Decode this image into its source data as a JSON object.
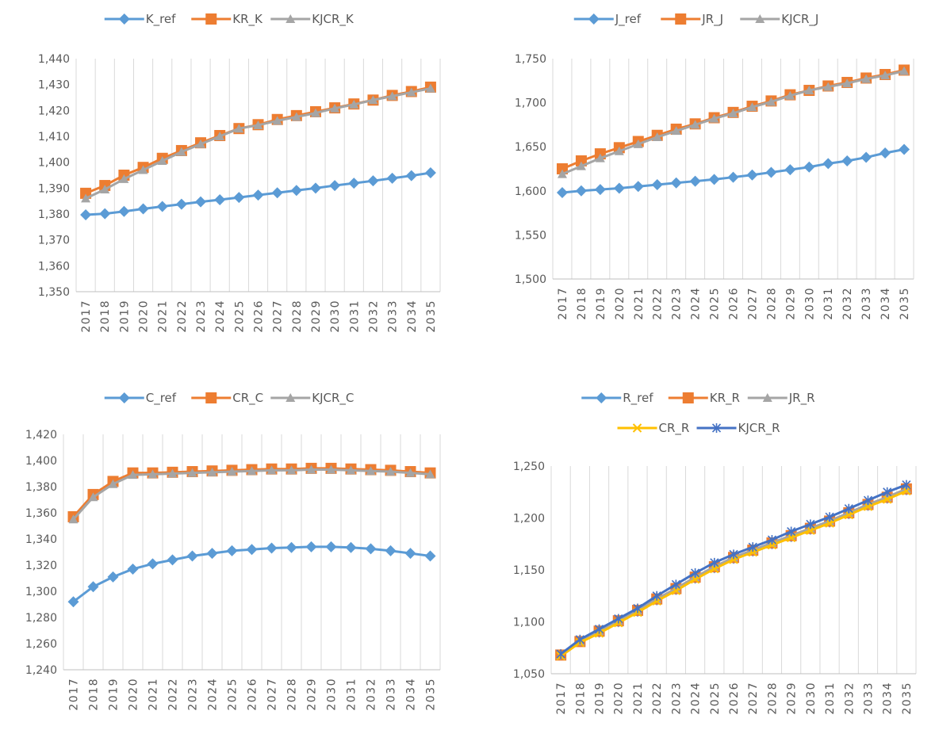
{
  "chart_data": [
    {
      "type": "line",
      "title": "",
      "xlabel": "",
      "ylabel": "",
      "ylim": [
        1350,
        1440
      ],
      "ytick_step": 10,
      "grid": "vertical",
      "legend_position": "top",
      "categories": [
        "2017",
        "2018",
        "2019",
        "2020",
        "2021",
        "2022",
        "2023",
        "2024",
        "2025",
        "2026",
        "2027",
        "2028",
        "2029",
        "2030",
        "2031",
        "2032",
        "2033",
        "2034",
        "2035"
      ],
      "series": [
        {
          "name": "K_ref",
          "color": "#5B9BD5",
          "marker": "diamond",
          "values": [
            1379.7,
            1380.1,
            1381.0,
            1382.0,
            1382.9,
            1383.8,
            1384.7,
            1385.5,
            1386.4,
            1387.3,
            1388.2,
            1389.1,
            1390.0,
            1391.0,
            1391.9,
            1392.8,
            1393.8,
            1394.8,
            1395.9
          ]
        },
        {
          "name": "KR_K",
          "color": "#ED7D31",
          "marker": "square",
          "values": [
            1388.0,
            1391.0,
            1395.0,
            1398.0,
            1401.5,
            1404.5,
            1407.5,
            1410.3,
            1413.0,
            1414.5,
            1416.5,
            1418.0,
            1419.5,
            1421.0,
            1422.5,
            1424.0,
            1425.8,
            1427.3,
            1429.0
          ]
        },
        {
          "name": "KJCR_K",
          "color": "#A5A5A5",
          "marker": "triangle",
          "values": [
            1386.0,
            1389.5,
            1393.5,
            1397.0,
            1400.5,
            1404.0,
            1407.0,
            1410.0,
            1413.0,
            1414.3,
            1416.0,
            1417.5,
            1419.0,
            1420.8,
            1422.3,
            1424.0,
            1425.5,
            1427.0,
            1428.5
          ]
        }
      ]
    },
    {
      "type": "line",
      "title": "",
      "xlabel": "",
      "ylabel": "",
      "ylim": [
        1500,
        1750
      ],
      "ytick_step": 50,
      "grid": "vertical",
      "legend_position": "top",
      "categories": [
        "2017",
        "2018",
        "2019",
        "2020",
        "2021",
        "2022",
        "2023",
        "2024",
        "2025",
        "2026",
        "2027",
        "2028",
        "2029",
        "2030",
        "2031",
        "2032",
        "2033",
        "2034",
        "2035"
      ],
      "series": [
        {
          "name": "J_ref",
          "color": "#5B9BD5",
          "marker": "diamond",
          "values": [
            1598,
            1600,
            1601.5,
            1603,
            1605,
            1607,
            1609,
            1611,
            1613,
            1615.5,
            1618,
            1621,
            1624,
            1627,
            1631,
            1634,
            1638,
            1643,
            1647
          ]
        },
        {
          "name": "JR_J",
          "color": "#ED7D31",
          "marker": "square",
          "values": [
            1625,
            1634,
            1642,
            1649,
            1656,
            1663,
            1670,
            1676,
            1683,
            1689,
            1696,
            1702,
            1709,
            1714,
            1719,
            1723,
            1728,
            1732,
            1737
          ]
        },
        {
          "name": "KJCR_J",
          "color": "#A5A5A5",
          "marker": "triangle",
          "values": [
            1619,
            1628,
            1637,
            1645,
            1653,
            1661,
            1668,
            1675,
            1682,
            1688,
            1695,
            1701,
            1708,
            1714,
            1718,
            1722,
            1727,
            1731,
            1736
          ]
        }
      ]
    },
    {
      "type": "line",
      "title": "",
      "xlabel": "",
      "ylabel": "",
      "ylim": [
        1240,
        1420
      ],
      "ytick_step": 20,
      "grid": "vertical",
      "legend_position": "top",
      "categories": [
        "2017",
        "2018",
        "2019",
        "2020",
        "2021",
        "2022",
        "2023",
        "2024",
        "2025",
        "2026",
        "2027",
        "2028",
        "2029",
        "2030",
        "2031",
        "2032",
        "2033",
        "2034",
        "2035"
      ],
      "series": [
        {
          "name": "C_ref",
          "color": "#5B9BD5",
          "marker": "diamond",
          "values": [
            1292,
            1303.5,
            1311,
            1317,
            1321,
            1324,
            1327,
            1329,
            1331,
            1332,
            1333,
            1333.5,
            1334,
            1334,
            1333.5,
            1332.5,
            1331,
            1329,
            1327
          ]
        },
        {
          "name": "CR_C",
          "color": "#ED7D31",
          "marker": "square",
          "values": [
            1357,
            1374,
            1384,
            1390.5,
            1390.5,
            1391,
            1391.5,
            1392,
            1392.5,
            1393,
            1393.5,
            1393.5,
            1394,
            1394,
            1393.5,
            1393,
            1392.5,
            1391.5,
            1390.5
          ]
        },
        {
          "name": "KJCR_C",
          "color": "#A5A5A5",
          "marker": "triangle",
          "values": [
            1355,
            1372,
            1382,
            1389,
            1389.5,
            1390,
            1390.5,
            1391,
            1391.5,
            1392,
            1392.5,
            1392.5,
            1393,
            1393,
            1392.5,
            1392,
            1391.5,
            1390.5,
            1389.5
          ]
        }
      ]
    },
    {
      "type": "line",
      "title": "",
      "xlabel": "",
      "ylabel": "",
      "ylim": [
        1050,
        1250
      ],
      "ytick_step": 50,
      "grid": "vertical",
      "legend_position": "top",
      "categories": [
        "2017",
        "2018",
        "2019",
        "2020",
        "2021",
        "2022",
        "2023",
        "2024",
        "2025",
        "2026",
        "2027",
        "2028",
        "2029",
        "2030",
        "2031",
        "2032",
        "2033",
        "2034",
        "2035"
      ],
      "series": [
        {
          "name": "R_ref",
          "color": "#5B9BD5",
          "marker": "diamond",
          "values": [
            1068,
            1081,
            1090,
            1100,
            1110,
            1121,
            1131,
            1142,
            1152,
            1161,
            1168,
            1175,
            1182,
            1189,
            1196,
            1204,
            1212,
            1219,
            1227
          ]
        },
        {
          "name": "KR_R",
          "color": "#ED7D31",
          "marker": "square",
          "values": [
            1068,
            1081,
            1091,
            1101,
            1111,
            1122,
            1132,
            1143,
            1153,
            1162,
            1169,
            1176,
            1183,
            1190,
            1197,
            1205,
            1213,
            1220,
            1228
          ]
        },
        {
          "name": "JR_R",
          "color": "#A5A5A5",
          "marker": "triangle",
          "values": [
            1068,
            1081,
            1091,
            1101,
            1111,
            1122,
            1132,
            1143,
            1153,
            1162,
            1169,
            1176,
            1183,
            1190,
            1197,
            1205,
            1213,
            1220,
            1228
          ]
        },
        {
          "name": "CR_R",
          "color": "#FFC000",
          "marker": "x",
          "values": [
            1067,
            1080,
            1089,
            1099,
            1109,
            1120,
            1130,
            1141,
            1151,
            1160,
            1167,
            1174,
            1181,
            1188,
            1195,
            1203,
            1211,
            1218,
            1226
          ]
        },
        {
          "name": "KJCR_R",
          "color": "#4472C4",
          "marker": "star",
          "values": [
            1069,
            1083,
            1093,
            1103,
            1113,
            1125,
            1136,
            1147,
            1157,
            1165,
            1172,
            1179,
            1187,
            1194,
            1201,
            1209,
            1217,
            1225,
            1232
          ]
        }
      ]
    }
  ]
}
